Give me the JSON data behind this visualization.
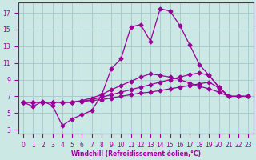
{
  "bg_color": "#cce8e4",
  "grid_color": "#aacccc",
  "line_color": "#990099",
  "xlabel": "Windchill (Refroidissement éolien,°C)",
  "x_ticks": [
    0,
    1,
    2,
    3,
    4,
    5,
    6,
    7,
    8,
    9,
    10,
    11,
    12,
    13,
    14,
    15,
    16,
    17,
    18,
    19,
    20,
    21,
    22,
    23
  ],
  "y_ticks": [
    3,
    5,
    7,
    9,
    11,
    13,
    15,
    17
  ],
  "xlim": [
    -0.5,
    23.5
  ],
  "ylim": [
    2.5,
    18.2
  ],
  "lines": [
    [
      6.3,
      5.8,
      6.4,
      5.9,
      3.5,
      4.3,
      4.8,
      5.3,
      7.1,
      10.3,
      11.5,
      15.3,
      15.6,
      13.6,
      17.5,
      17.2,
      15.5,
      13.2,
      10.8,
      9.5,
      8.1,
      7.0,
      7.0,
      7.0
    ],
    [
      6.3,
      6.3,
      6.3,
      6.3,
      6.3,
      6.3,
      6.4,
      6.5,
      6.6,
      6.8,
      7.0,
      7.2,
      7.4,
      7.5,
      7.7,
      7.9,
      8.1,
      8.3,
      8.5,
      8.7,
      8.0,
      7.0,
      7.0,
      7.0
    ],
    [
      6.3,
      6.3,
      6.3,
      6.3,
      6.3,
      6.3,
      6.4,
      6.6,
      6.9,
      7.2,
      7.5,
      7.8,
      8.1,
      8.4,
      8.7,
      9.0,
      9.3,
      9.6,
      9.8,
      9.5,
      8.1,
      7.0,
      7.0,
      7.0
    ],
    [
      6.3,
      6.3,
      6.3,
      6.3,
      6.3,
      6.3,
      6.5,
      6.8,
      7.2,
      7.8,
      8.3,
      8.8,
      9.3,
      9.7,
      9.5,
      9.3,
      9.0,
      8.6,
      8.2,
      7.9,
      7.5,
      7.0,
      7.0,
      7.0
    ]
  ]
}
